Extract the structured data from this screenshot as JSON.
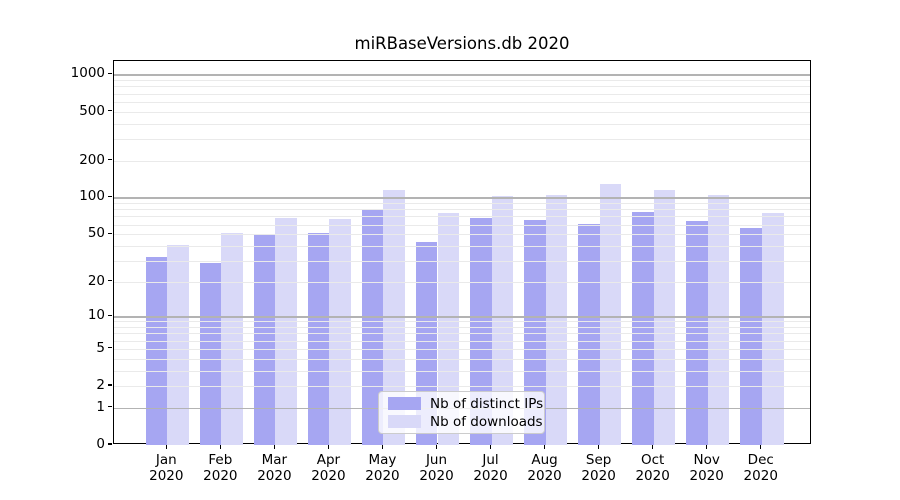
{
  "chart_data": {
    "type": "bar",
    "title": "miRBaseVersions.db 2020",
    "categories": [
      "Jan",
      "Feb",
      "Mar",
      "Apr",
      "May",
      "Jun",
      "Jul",
      "Aug",
      "Sep",
      "Oct",
      "Nov",
      "Dec"
    ],
    "category_year": "2020",
    "series": [
      {
        "name": "Nb of distinct IPs",
        "color": "#a6a6f2",
        "values": [
          32,
          29,
          49,
          51,
          79,
          43,
          68,
          65,
          61,
          76,
          64,
          56
        ]
      },
      {
        "name": "Nb of downloads",
        "color": "#d9d9f8",
        "values": [
          41,
          51,
          68,
          66,
          115,
          75,
          103,
          105,
          130,
          115,
          104,
          74
        ]
      }
    ],
    "xlabel": "",
    "ylabel": "",
    "y_scale": "log1p",
    "ylim": [
      0,
      1285
    ],
    "y_ticks": [
      0,
      1,
      2,
      5,
      10,
      20,
      50,
      100,
      200,
      500,
      1000
    ],
    "y_major_grid": [
      1,
      10,
      100,
      1000
    ],
    "y_minor_grid": [
      2,
      3,
      4,
      5,
      6,
      7,
      8,
      9,
      20,
      30,
      40,
      50,
      60,
      70,
      80,
      90,
      200,
      300,
      400,
      500,
      600,
      700,
      800,
      900
    ],
    "grid": true,
    "legend_position": "lower center"
  },
  "colors": {
    "bar_dark": "#a6a6f2",
    "bar_light": "#d9d9f8",
    "grid_major": "#b3b3b3",
    "grid_minor": "#eaeaea",
    "frame": "#000000",
    "text": "#000000",
    "legend_border": "#cccccc"
  }
}
